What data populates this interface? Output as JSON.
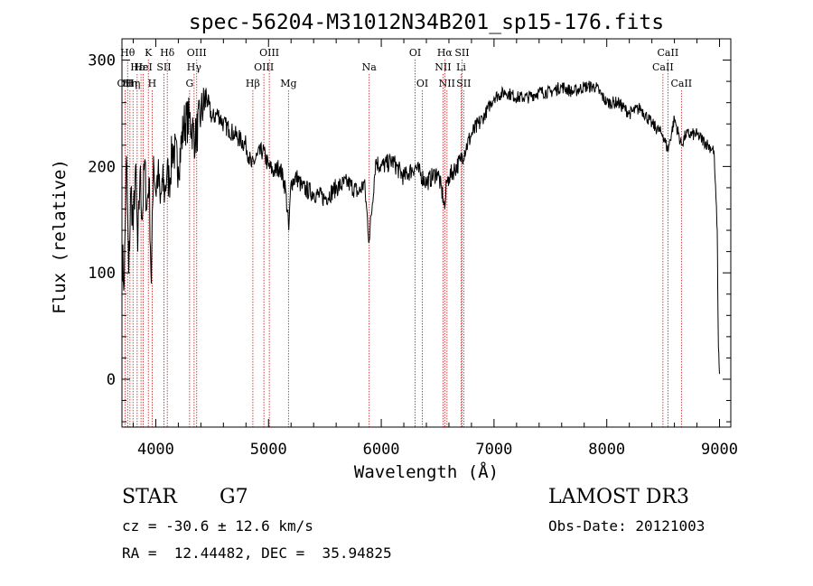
{
  "chart_data": {
    "type": "line",
    "title": "spec-56204-M31012N34B201_sp15-176.fits",
    "xlabel": "Wavelength (Å)",
    "ylabel": "Flux (relative)",
    "xlim": [
      3700,
      9100
    ],
    "ylim": [
      -45,
      320
    ],
    "xticks": [
      4000,
      5000,
      6000,
      7000,
      8000,
      9000
    ],
    "yticks": [
      0,
      100,
      200,
      300
    ],
    "grid": false,
    "series": [
      {
        "name": "spectrum",
        "x": [
          3700,
          3720,
          3740,
          3760,
          3780,
          3800,
          3820,
          3840,
          3860,
          3880,
          3900,
          3920,
          3940,
          3960,
          3980,
          4000,
          4020,
          4040,
          4060,
          4080,
          4100,
          4120,
          4150,
          4200,
          4250,
          4300,
          4350,
          4400,
          4450,
          4500,
          4550,
          4600,
          4650,
          4700,
          4750,
          4800,
          4850,
          4900,
          4950,
          5000,
          5050,
          5100,
          5150,
          5180,
          5200,
          5250,
          5300,
          5400,
          5500,
          5600,
          5700,
          5800,
          5850,
          5893,
          5950,
          6000,
          6100,
          6200,
          6300,
          6400,
          6500,
          6550,
          6563,
          6580,
          6600,
          6700,
          6800,
          6900,
          7000,
          7100,
          7200,
          7300,
          7400,
          7500,
          7600,
          7700,
          7800,
          7900,
          8000,
          8100,
          8200,
          8300,
          8400,
          8498,
          8542,
          8600,
          8662,
          8700,
          8800,
          8900,
          8950,
          8980,
          8985,
          8990,
          9000
        ],
        "y": [
          120,
          90,
          210,
          100,
          180,
          140,
          200,
          120,
          195,
          150,
          205,
          160,
          190,
          90,
          210,
          175,
          195,
          165,
          185,
          175,
          195,
          185,
          220,
          200,
          240,
          245,
          225,
          250,
          265,
          245,
          250,
          240,
          235,
          230,
          225,
          220,
          200,
          210,
          215,
          200,
          195,
          200,
          180,
          140,
          185,
          190,
          180,
          175,
          170,
          180,
          185,
          175,
          185,
          130,
          205,
          200,
          205,
          190,
          200,
          185,
          195,
          170,
          160,
          185,
          190,
          205,
          230,
          245,
          265,
          270,
          265,
          265,
          270,
          270,
          275,
          270,
          275,
          275,
          260,
          260,
          250,
          255,
          240,
          230,
          215,
          245,
          220,
          230,
          230,
          220,
          215,
          140,
          80,
          30,
          5
        ]
      }
    ],
    "lines": [
      {
        "wavelength": 3727,
        "label": "OII",
        "row": 3
      },
      {
        "wavelength": 3750,
        "label": "Hθ",
        "row": 1
      },
      {
        "wavelength": 3771,
        "label": "Hη",
        "row": 3
      },
      {
        "wavelength": 3798,
        "label": "Hη",
        "row": 3
      },
      {
        "wavelength": 3835,
        "label": "Hε",
        "row": 2
      },
      {
        "wavelength": 3869,
        "label": "Hε",
        "row": 2
      },
      {
        "wavelength": 3889,
        "label": "HeI",
        "row": 2
      },
      {
        "wavelength": 3934,
        "label": "K",
        "row": 1
      },
      {
        "wavelength": 3968,
        "label": "H",
        "row": 3
      },
      {
        "wavelength": 4072,
        "label": "SII",
        "row": 2
      },
      {
        "wavelength": 4102,
        "label": "Hδ",
        "row": 1
      },
      {
        "wavelength": 4300,
        "label": "G",
        "row": 3
      },
      {
        "wavelength": 4340,
        "label": "Hγ",
        "row": 2
      },
      {
        "wavelength": 4363,
        "label": "OIII",
        "row": 1
      },
      {
        "wavelength": 4861,
        "label": "Hβ",
        "row": 3
      },
      {
        "wavelength": 4959,
        "label": "OIII",
        "row": 2
      },
      {
        "wavelength": 5007,
        "label": "OIII",
        "row": 1
      },
      {
        "wavelength": 5177,
        "label": "Mg",
        "row": 3
      },
      {
        "wavelength": 5893,
        "label": "Na",
        "row": 2
      },
      {
        "wavelength": 6300,
        "label": "OI",
        "row": 1
      },
      {
        "wavelength": 6364,
        "label": "OI",
        "row": 3
      },
      {
        "wavelength": 6548,
        "label": "NII",
        "row": 2
      },
      {
        "wavelength": 6563,
        "label": "Hα",
        "row": 1
      },
      {
        "wavelength": 6583,
        "label": "NII",
        "row": 3
      },
      {
        "wavelength": 6708,
        "label": "Li",
        "row": 2
      },
      {
        "wavelength": 6716,
        "label": "SII",
        "row": 1
      },
      {
        "wavelength": 6731,
        "label": "SII",
        "row": 3
      },
      {
        "wavelength": 8498,
        "label": "CaII",
        "row": 2
      },
      {
        "wavelength": 8542,
        "label": "CaII",
        "row": 1
      },
      {
        "wavelength": 8662,
        "label": "CaII",
        "row": 3
      }
    ]
  },
  "footer": {
    "object_class": "STAR",
    "subclass": "G7",
    "survey": "LAMOST DR3",
    "cz": "cz = -30.6 ± 12.6 km/s",
    "obs_date": "Obs-Date: 20121003",
    "coords": "RA =  12.44482, DEC =  35.94825"
  },
  "colors": {
    "line": "#000000",
    "marker_lines": "#c01818"
  }
}
